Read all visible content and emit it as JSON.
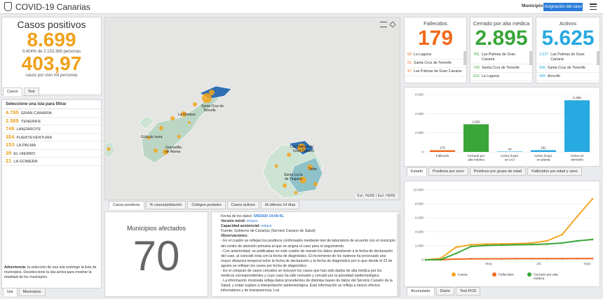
{
  "app": {
    "title": "COVID-19 Canarias",
    "municipio_label": "Municipio",
    "assign_button": "Asignación del caso",
    "menu_icon": "hamburger-icon"
  },
  "cases": {
    "title": "Casos positivos",
    "value": "8.699",
    "subtitle": "0,404% de 2.153.389 personas",
    "rate": "403,97",
    "rate_label": "casos por cien mil personas",
    "tabs": [
      "Casos",
      "Test"
    ]
  },
  "islands": {
    "header": "Seleccione una isla para filtrar",
    "items": [
      {
        "value": "4.795",
        "name": "GRAN CANARIA"
      },
      {
        "value": "2.585",
        "name": "TENERIFE"
      },
      {
        "value": "748",
        "name": "LANZAROTE"
      },
      {
        "value": "354",
        "name": "FUERTEVENTURA"
      },
      {
        "value": "153",
        "name": "LA PALMA"
      },
      {
        "value": "39",
        "name": "EL HIERRO"
      },
      {
        "value": "21",
        "name": "LA GOMERA"
      }
    ],
    "warning_bold": "Advertencia:",
    "warning_text": " la selección de una isla restringe la lista de municipios. Deseleccione la isla activa para mostrar la totalidad de los municipios.",
    "tabs": [
      "Isla",
      "Municipios"
    ]
  },
  "map": {
    "labels": [
      "Santa Cruz de Tenerife",
      "La Orotava",
      "Granadilla de Abona",
      "Güía de Isora",
      "Las Palmas de Gran Canaria",
      "Santa Lucía de Tirajana",
      "Telde"
    ],
    "attribution": "Esri, HERE | Esri, HERE",
    "tabs": [
      "Casos positivos",
      "% casos/población",
      "Códigos postales",
      "Casos activos",
      "IA últimos 14 días"
    ]
  },
  "municipios": {
    "title": "Municipios afectados",
    "value": "70"
  },
  "notes": {
    "line1_label": "Fecha de los datos: ",
    "line1_value": "5/9/2020 14:00:41.",
    "line2_label": "Versión móvil: ",
    "line2_value": "enlace.",
    "line3_label": "Capacidad asistencial: ",
    "line3_value": "enlace",
    "line4": "Fuente: Gobierno de Canarias (Servicio Canario de Salud)",
    "line5": "Observaciones:",
    "p1": "- En el cuadro se reflejan los positivos confirmados mediante test de laboratorio de acuerdo con el municipio del centro de atención primaria al que se asigna el caso para el seguimiento.",
    "p2": "- Con anterioridad, se publicaban en este cuadro de mando los datos atendiendo a la fecha de declaración del caso, al coincidir ésta con la fecha de diagnóstico. El incremento de los rastreos ha provocado una mayor distancia temporal entre la fecha de declaración y la fecha de diagnóstico por lo que desde el 22 de agosto se reflejan los casos por fecha de diagnóstico.",
    "p3": "- En el cómputo de casos cerrados se incluyen los casos que han sido dados de alta médica por los médicos correspondientes y cuyo caso ha sido revisado y cerrado por la autoridad epidemiológica.",
    "p4": "- La información mostrada refleja datos procedentes de distintas bases de datos del Servicio Canario de la Salud, y están sujetos a interpretación epidemiológica. Esta información se refleja a únicos efectos informativos y de transparencia. Los"
  },
  "kpis": [
    {
      "title": "Fallecidos",
      "value": "179",
      "color": "#f06a1c",
      "rows": [
        [
          "58",
          "La Laguna"
        ],
        [
          "51",
          "Santa Cruz de Tenerife"
        ],
        [
          "47",
          "Las Palmas de Gran Canaria"
        ]
      ]
    },
    {
      "title": "Cerrado por alta médica",
      "value": "2.895",
      "color": "#3aa53a",
      "rows": [
        [
          "781",
          "Las Palmas de Gran Canaria"
        ],
        [
          "729",
          "Santa Cruz de Tenerife"
        ],
        [
          "610",
          "La Laguna"
        ]
      ]
    },
    {
      "title": "Activos",
      "value": "5.625",
      "color": "#27a9e1",
      "rows": [
        [
          "3.227",
          "Las Palmas de Gran Canaria"
        ],
        [
          "566",
          "Santa Cruz de Tenerife"
        ],
        [
          "499",
          "Arrecife"
        ]
      ]
    }
  ],
  "bar_chart_tabs": [
    "Estado",
    "Positivos por sexo",
    "Positivos por grupo de edad",
    "Fallecidos por edad y sexo"
  ],
  "line_chart_tabs": [
    "Acumulado",
    "Diario",
    "Test PCR"
  ],
  "chart_data": [
    {
      "type": "bar",
      "categories": [
        "Fallecido",
        "Cerrado por alta médica",
        "Activo hospi. en UCI",
        "Activo hospi. en planta",
        "Activo en domicilio"
      ],
      "values": [
        179,
        2895,
        44,
        182,
        5399
      ],
      "colors": [
        "#f06a1c",
        "#3aa53a",
        "#27a9e1",
        "#27a9e1",
        "#27a9e1"
      ],
      "value_labels": [
        "179",
        "2.895",
        "44",
        "182",
        "5.399"
      ],
      "ylim": [
        0,
        6000
      ],
      "yticks": [
        "0",
        "2.000",
        "4.000",
        "6.000"
      ],
      "grid": true
    },
    {
      "type": "line",
      "x_ticks": [
        "May.",
        "Jul.",
        "Sept."
      ],
      "ylim": [
        0,
        10000
      ],
      "yticks": [
        "0",
        "2.000",
        "4.000",
        "6.000",
        "8.000",
        "10.000"
      ],
      "series": [
        {
          "name": "Casos",
          "color": "#f5a623",
          "values": [
            0,
            200,
            1800,
            2150,
            2250,
            2280,
            2300,
            2400,
            2700,
            3600,
            6200,
            8699
          ]
        },
        {
          "name": "Fallecidos",
          "color": "#f06a1c",
          "values": [
            0,
            5,
            100,
            140,
            150,
            155,
            158,
            160,
            162,
            166,
            172,
            179
          ]
        },
        {
          "name": "Cerrado por alta médica",
          "color": "#3aa53a",
          "values": [
            0,
            20,
            900,
            1900,
            2050,
            2100,
            2150,
            2180,
            2250,
            2400,
            2700,
            2895
          ]
        }
      ]
    }
  ]
}
